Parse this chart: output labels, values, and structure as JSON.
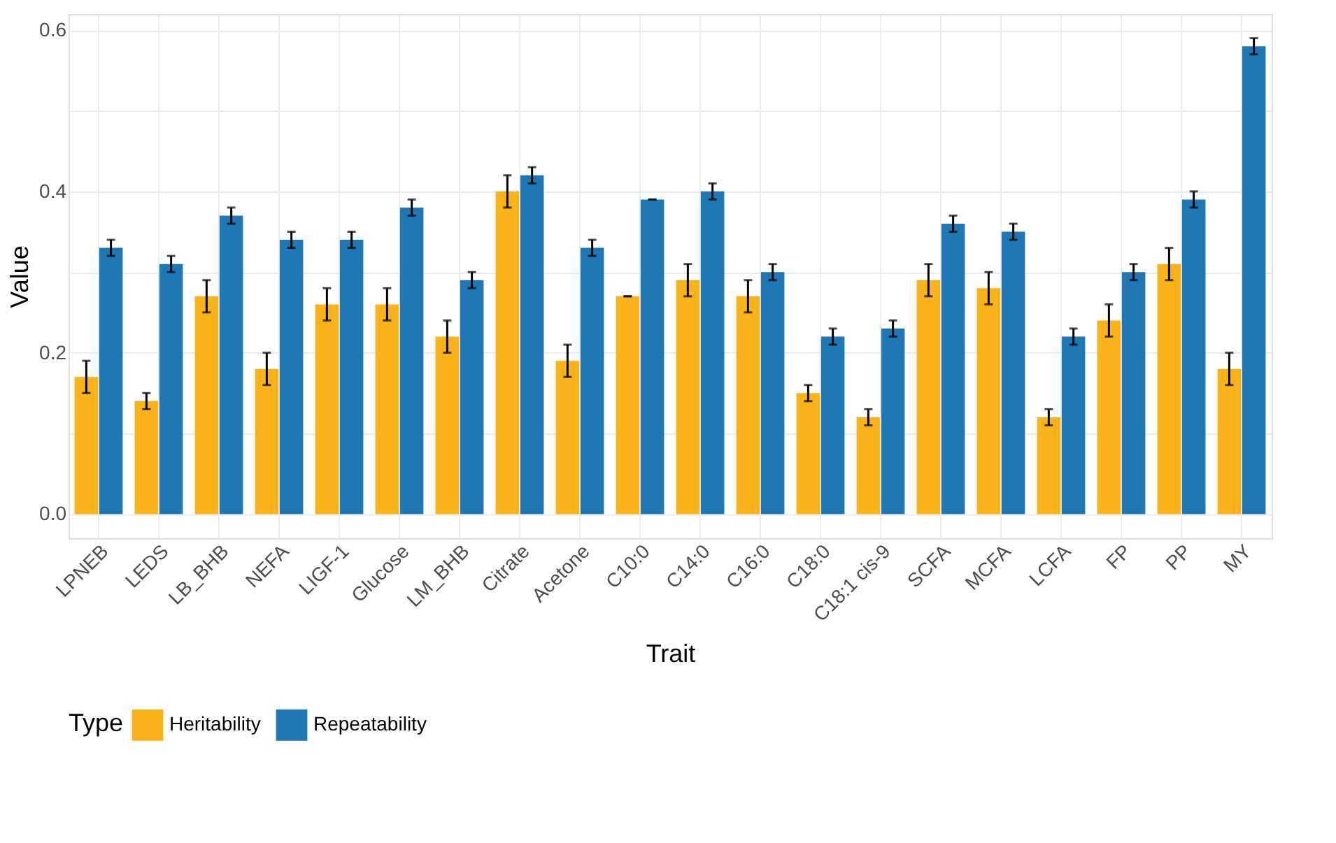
{
  "chart_data": {
    "type": "bar",
    "xlabel": "Trait",
    "ylabel": "Value",
    "legend_title": "Type",
    "categories": [
      "LPNEB",
      "LEDS",
      "LB_BHB",
      "NEFA",
      "LIGF-1",
      "Glucose",
      "LM_BHB",
      "Citrate",
      "Acetone",
      "C10:0",
      "C14:0",
      "C16:0",
      "C18:0",
      "C18:1 cis-9",
      "SCFA",
      "MCFA",
      "LCFA",
      "FP",
      "PP",
      "MY"
    ],
    "series": [
      {
        "name": "Heritability",
        "color": "#fbb31a",
        "values": [
          0.17,
          0.14,
          0.27,
          0.18,
          0.26,
          0.26,
          0.22,
          0.4,
          0.19,
          0.27,
          0.29,
          0.27,
          0.15,
          0.12,
          0.29,
          0.28,
          0.12,
          0.24,
          0.31,
          0.18
        ],
        "errors": [
          0.02,
          0.01,
          0.02,
          0.02,
          0.02,
          0.02,
          0.02,
          0.02,
          0.02,
          0.0,
          0.02,
          0.02,
          0.01,
          0.01,
          0.02,
          0.02,
          0.01,
          0.02,
          0.02,
          0.02
        ]
      },
      {
        "name": "Repeatability",
        "color": "#1f78b4",
        "values": [
          0.33,
          0.31,
          0.37,
          0.34,
          0.34,
          0.38,
          0.29,
          0.42,
          0.33,
          0.39,
          0.4,
          0.3,
          0.22,
          0.23,
          0.36,
          0.35,
          0.22,
          0.3,
          0.39,
          0.58
        ],
        "errors": [
          0.01,
          0.01,
          0.01,
          0.01,
          0.01,
          0.01,
          0.01,
          0.01,
          0.01,
          0.0,
          0.01,
          0.01,
          0.01,
          0.01,
          0.01,
          0.01,
          0.01,
          0.01,
          0.01,
          0.01
        ]
      }
    ],
    "ylim": [
      -0.03,
      0.62
    ],
    "yticks": [
      {
        "value": 0,
        "label": "0.0"
      },
      {
        "value": 0.1,
        "label": null
      },
      {
        "value": 0.2,
        "label": "0.2"
      },
      {
        "value": 0.3,
        "label": null
      },
      {
        "value": 0.4,
        "label": "0.4"
      },
      {
        "value": 0.5,
        "label": null
      },
      {
        "value": 0.6,
        "label": "0.6"
      }
    ],
    "grid": true,
    "legend": "bottom"
  }
}
